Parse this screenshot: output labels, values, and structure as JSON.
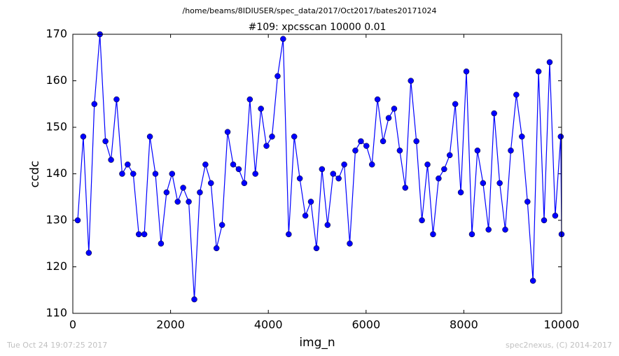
{
  "chart_data": {
    "type": "line",
    "suptitle": "/home/beams/8IDIUSER/spec_data/2017/Oct2017/bates20171024",
    "title": "#109: xpcsscan 10000 0.01",
    "x_label": "img_n",
    "y_label": "ccdc",
    "footer_left": "Tue Oct 24 19:07:25 2017",
    "footer_right": "spec2nexus, (C) 2014-2017",
    "x": [
      100,
      214,
      327,
      441,
      554,
      668,
      782,
      895,
      1009,
      1122,
      1236,
      1350,
      1463,
      1577,
      1690,
      1804,
      1918,
      2031,
      2145,
      2258,
      2372,
      2486,
      2599,
      2713,
      2826,
      2940,
      3054,
      3167,
      3281,
      3394,
      3508,
      3622,
      3735,
      3849,
      3962,
      4076,
      4190,
      4303,
      4417,
      4530,
      4644,
      4758,
      4871,
      4985,
      5098,
      5212,
      5326,
      5439,
      5553,
      5666,
      5780,
      5894,
      6007,
      6121,
      6234,
      6348,
      6462,
      6575,
      6689,
      6802,
      6916,
      7030,
      7143,
      7257,
      7370,
      7484,
      7598,
      7711,
      7825,
      7938,
      8052,
      8166,
      8279,
      8393,
      8506,
      8620,
      8734,
      8847,
      8961,
      9074,
      9188,
      9302,
      9415,
      9529,
      9642,
      9756,
      9870,
      9983,
      10000
    ],
    "series": [
      {
        "color": "#0000ff",
        "values": [
          130,
          148,
          123,
          155,
          170,
          147,
          143,
          156,
          140,
          142,
          140,
          127,
          127,
          148,
          140,
          125,
          136,
          140,
          134,
          137,
          134,
          113,
          136,
          142,
          138,
          124,
          129,
          149,
          142,
          141,
          138,
          156,
          140,
          154,
          146,
          148,
          161,
          169,
          127,
          148,
          139,
          131,
          134,
          124,
          141,
          129,
          140,
          139,
          142,
          125,
          145,
          147,
          146,
          142,
          156,
          147,
          152,
          154,
          145,
          137,
          160,
          147,
          130,
          142,
          127,
          139,
          141,
          144,
          155,
          136,
          162,
          127,
          145,
          138,
          128,
          153,
          138,
          128,
          145,
          157,
          148,
          134,
          117,
          162,
          130,
          164,
          131,
          148,
          127
        ]
      }
    ],
    "xlim": [
      0,
      10000
    ],
    "xticks": [
      0,
      2000,
      4000,
      6000,
      8000,
      10000
    ],
    "ylim": [
      110,
      170
    ],
    "yticks": [
      110,
      120,
      130,
      140,
      150,
      160,
      170
    ],
    "grid": false
  }
}
